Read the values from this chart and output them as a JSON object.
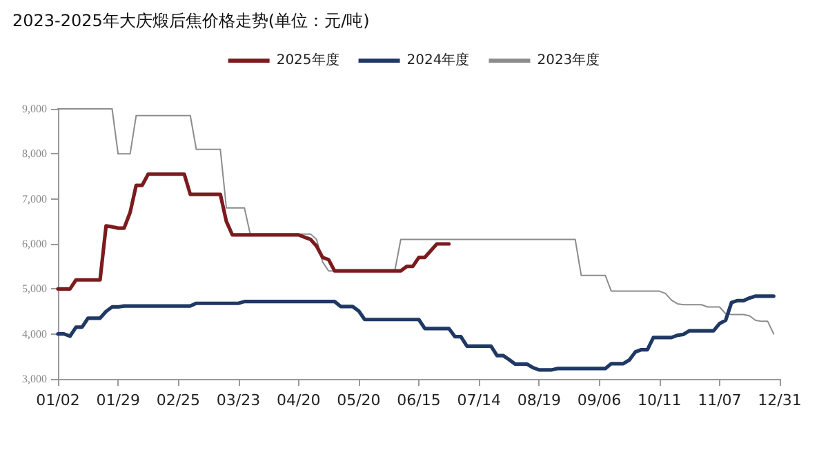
{
  "chart_data": {
    "type": "line",
    "title": "2023-2025年大庆煅后焦价格走势(单位：元/吨)",
    "categories": [
      "01/02",
      null,
      null,
      null,
      null,
      null,
      null,
      null,
      null,
      null,
      "01/29",
      null,
      null,
      null,
      null,
      null,
      null,
      null,
      null,
      null,
      "02/25",
      null,
      null,
      null,
      null,
      null,
      null,
      null,
      null,
      null,
      "03/23",
      null,
      null,
      null,
      null,
      null,
      null,
      null,
      null,
      null,
      "04/20",
      null,
      null,
      null,
      null,
      null,
      null,
      null,
      null,
      null,
      "05/20",
      null,
      null,
      null,
      null,
      null,
      null,
      null,
      null,
      null,
      "06/15",
      null,
      null,
      null,
      null,
      null,
      null,
      null,
      null,
      null,
      "07/14",
      null,
      null,
      null,
      null,
      null,
      null,
      null,
      null,
      null,
      "08/19",
      null,
      null,
      null,
      null,
      null,
      null,
      null,
      null,
      null,
      "09/06",
      null,
      null,
      null,
      null,
      null,
      null,
      null,
      null,
      null,
      "10/11",
      null,
      null,
      null,
      null,
      null,
      null,
      null,
      null,
      null,
      "11/07",
      null,
      null,
      null,
      null,
      null,
      null,
      null,
      null,
      null,
      "12/31"
    ],
    "ylim": [
      3000,
      9000
    ],
    "yticks": [
      {
        "value": 3000,
        "label": "3,000"
      },
      {
        "value": 4000,
        "label": "4,000"
      },
      {
        "value": 5000,
        "label": "5,000"
      },
      {
        "value": 6000,
        "label": "6,000"
      },
      {
        "value": 7000,
        "label": "7,000"
      },
      {
        "value": 8000,
        "label": "8,000"
      },
      {
        "value": 9000,
        "label": "9,000"
      }
    ],
    "series": [
      {
        "name": "2025年度",
        "color": "#7b1b1e",
        "values": [
          5000,
          5000,
          5000,
          5200,
          5200,
          5200,
          5200,
          5200,
          6400,
          6380,
          6350,
          6350,
          6700,
          7300,
          7300,
          7550,
          7550,
          7550,
          7550,
          7550,
          7550,
          7550,
          7100,
          7100,
          7100,
          7100,
          7100,
          7100,
          6500,
          6200,
          6200,
          6200,
          6200,
          6200,
          6200,
          6200,
          6200,
          6200,
          6200,
          6200,
          6200,
          6150,
          6100,
          5950,
          5700,
          5650,
          5400,
          5400,
          5400,
          5400,
          5400,
          5400,
          5400,
          5400,
          5400,
          5400,
          5400,
          5400,
          5500,
          5500,
          5700,
          5700,
          5850,
          6000,
          6000,
          6000,
          null,
          null,
          null,
          null,
          null,
          null,
          null,
          null,
          null,
          null,
          null,
          null,
          null,
          null,
          null,
          null,
          null,
          null,
          null,
          null,
          null,
          null,
          null,
          null,
          null,
          null,
          null,
          null,
          null,
          null,
          null,
          null,
          null,
          null,
          null,
          null,
          null,
          null,
          null,
          null,
          null,
          null,
          null,
          null,
          null,
          null,
          null,
          null,
          null,
          null,
          null,
          null,
          null,
          null,
          null
        ]
      },
      {
        "name": "2024年度",
        "color": "#1f3864",
        "values": [
          4000,
          4000,
          3950,
          4150,
          4150,
          4350,
          4350,
          4350,
          4500,
          4600,
          4600,
          4620,
          4620,
          4620,
          4620,
          4620,
          4620,
          4620,
          4620,
          4620,
          4620,
          4620,
          4620,
          4680,
          4680,
          4680,
          4680,
          4680,
          4680,
          4680,
          4680,
          4720,
          4720,
          4720,
          4720,
          4720,
          4720,
          4720,
          4720,
          4720,
          4720,
          4720,
          4720,
          4720,
          4720,
          4720,
          4720,
          4610,
          4610,
          4610,
          4510,
          4320,
          4320,
          4320,
          4320,
          4320,
          4320,
          4320,
          4320,
          4320,
          4320,
          4120,
          4120,
          4120,
          4120,
          4120,
          3940,
          3940,
          3730,
          3730,
          3730,
          3730,
          3730,
          3520,
          3520,
          3430,
          3330,
          3330,
          3330,
          3250,
          3200,
          3200,
          3200,
          3230,
          3230,
          3230,
          3230,
          3230,
          3230,
          3230,
          3230,
          3230,
          3340,
          3340,
          3340,
          3420,
          3600,
          3650,
          3650,
          3920,
          3920,
          3920,
          3920,
          3970,
          3990,
          4070,
          4070,
          4070,
          4070,
          4070,
          4230,
          4300,
          4700,
          4740,
          4740,
          4800,
          4840,
          4840,
          4840,
          4840,
          null
        ]
      },
      {
        "name": "2023年度",
        "color": "#8c8c8c",
        "values": [
          9000,
          9000,
          9000,
          9000,
          9000,
          9000,
          9000,
          9000,
          9000,
          9000,
          8000,
          8000,
          8000,
          8850,
          8850,
          8850,
          8850,
          8850,
          8850,
          8850,
          8850,
          8850,
          8850,
          8100,
          8100,
          8100,
          8100,
          8100,
          6800,
          6800,
          6800,
          6800,
          6200,
          6220,
          6220,
          6220,
          6220,
          6220,
          6220,
          6220,
          6220,
          6220,
          6220,
          6100,
          5600,
          5400,
          5400,
          5400,
          5400,
          5400,
          5400,
          5400,
          5400,
          5400,
          5400,
          5400,
          5400,
          6100,
          6100,
          6100,
          6100,
          6100,
          6100,
          6100,
          6100,
          6100,
          6100,
          6100,
          6100,
          6100,
          6100,
          6100,
          6100,
          6100,
          6100,
          6100,
          6100,
          6100,
          6100,
          6100,
          6100,
          6100,
          6100,
          6100,
          6100,
          6100,
          6100,
          5300,
          5300,
          5300,
          5300,
          5300,
          4950,
          4950,
          4950,
          4950,
          4950,
          4950,
          4950,
          4950,
          4950,
          4900,
          4750,
          4670,
          4650,
          4650,
          4650,
          4650,
          4600,
          4600,
          4600,
          4450,
          4430,
          4430,
          4430,
          4400,
          4300,
          4280,
          4280,
          4000,
          null
        ]
      }
    ],
    "legend": "top",
    "grid": false,
    "marker": "none"
  }
}
